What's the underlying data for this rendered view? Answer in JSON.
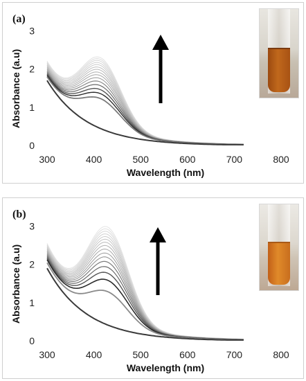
{
  "chart_data": [
    {
      "type": "line",
      "panel_label": "(a)",
      "xlabel": "Wavelength (nm)",
      "ylabel": "Absorbance (a.u)",
      "xlim": [
        300,
        800
      ],
      "ylim": [
        0,
        3.3
      ],
      "x_ticks": [
        300,
        400,
        500,
        600,
        700,
        800
      ],
      "y_ticks": [
        0,
        1,
        2,
        3
      ],
      "grid": false,
      "legend": "none",
      "annotation": "upward arrow indicating absorbance increase over time",
      "inset": "photograph of vial with orange-brown colloidal solution",
      "series": [
        {
          "peak": 0.0,
          "base300": 1.7,
          "color": "#3a3a3a",
          "width": 2.0
        },
        {
          "peak": 0.95,
          "base300": 1.7,
          "color": "#7a7a7a",
          "width": 1.8
        },
        {
          "peak": 1.1,
          "base300": 1.72,
          "color": "#2a2a2a",
          "width": 1.4
        },
        {
          "peak": 1.22,
          "base300": 1.74,
          "color": "#555555",
          "width": 1.4
        },
        {
          "peak": 1.34,
          "base300": 1.76,
          "color": "#6a6a6a",
          "width": 1.2
        },
        {
          "peak": 1.45,
          "base300": 1.78,
          "color": "#888888",
          "width": 1.2
        },
        {
          "peak": 1.55,
          "base300": 1.8,
          "color": "#9a9a9a",
          "width": 1.0
        },
        {
          "peak": 1.64,
          "base300": 1.82,
          "color": "#a6a6a6",
          "width": 1.0
        },
        {
          "peak": 1.72,
          "base300": 1.84,
          "color": "#b0b0b0",
          "width": 1.0
        },
        {
          "peak": 1.8,
          "base300": 1.86,
          "color": "#bababa",
          "width": 1.0
        },
        {
          "peak": 1.87,
          "base300": 1.88,
          "color": "#c2c2c2",
          "width": 1.0
        },
        {
          "peak": 1.94,
          "base300": 1.9,
          "color": "#cacaca",
          "width": 1.0
        },
        {
          "peak": 2.0,
          "base300": 1.92,
          "color": "#d0d0d0",
          "width": 1.0
        },
        {
          "peak": 2.06,
          "base300": 1.94,
          "color": "#d6d6d6",
          "width": 1.0
        },
        {
          "peak": 2.11,
          "base300": 1.96,
          "color": "#dcdcdc",
          "width": 1.0
        },
        {
          "peak": 2.16,
          "base300": 1.98,
          "color": "#e2e2e2",
          "width": 1.0
        }
      ],
      "peak_wavelength": 415
    },
    {
      "type": "line",
      "panel_label": "(b)",
      "xlabel": "Wavelength (nm)",
      "ylabel": "Absorbance (a.u)",
      "xlim": [
        300,
        800
      ],
      "ylim": [
        0,
        3.3
      ],
      "x_ticks": [
        300,
        400,
        500,
        600,
        700,
        800
      ],
      "y_ticks": [
        0,
        1,
        2,
        3
      ],
      "grid": false,
      "legend": "none",
      "annotation": "upward arrow indicating absorbance increase over time",
      "inset": "photograph of vial with orange colloidal solution",
      "series": [
        {
          "peak": 0.0,
          "base300": 1.9,
          "color": "#3a3a3a",
          "width": 2.0
        },
        {
          "peak": 1.05,
          "base300": 1.95,
          "color": "#8a8a8a",
          "width": 1.8
        },
        {
          "peak": 1.4,
          "base300": 2.0,
          "color": "#2a2a2a",
          "width": 1.6
        },
        {
          "peak": 1.62,
          "base300": 2.02,
          "color": "#555555",
          "width": 1.4
        },
        {
          "peak": 1.8,
          "base300": 2.04,
          "color": "#686868",
          "width": 1.2
        },
        {
          "peak": 1.96,
          "base300": 2.06,
          "color": "#7c7c7c",
          "width": 1.2
        },
        {
          "peak": 2.1,
          "base300": 2.08,
          "color": "#8e8e8e",
          "width": 1.0
        },
        {
          "peak": 2.22,
          "base300": 2.1,
          "color": "#9c9c9c",
          "width": 1.0
        },
        {
          "peak": 2.34,
          "base300": 2.12,
          "color": "#a8a8a8",
          "width": 1.0
        },
        {
          "peak": 2.45,
          "base300": 2.14,
          "color": "#b2b2b2",
          "width": 1.0
        },
        {
          "peak": 2.55,
          "base300": 2.16,
          "color": "#bcbcbc",
          "width": 1.0
        },
        {
          "peak": 2.64,
          "base300": 2.18,
          "color": "#c4c4c4",
          "width": 1.0
        },
        {
          "peak": 2.72,
          "base300": 2.2,
          "color": "#cccccc",
          "width": 1.0
        },
        {
          "peak": 2.8,
          "base300": 2.22,
          "color": "#d2d2d2",
          "width": 1.0
        },
        {
          "peak": 2.88,
          "base300": 2.24,
          "color": "#d8d8d8",
          "width": 1.0
        },
        {
          "peak": 2.95,
          "base300": 2.26,
          "color": "#dedede",
          "width": 1.0
        },
        {
          "peak": 3.02,
          "base300": 2.28,
          "color": "#e4e4e4",
          "width": 1.0
        }
      ],
      "peak_wavelength": 430
    }
  ]
}
